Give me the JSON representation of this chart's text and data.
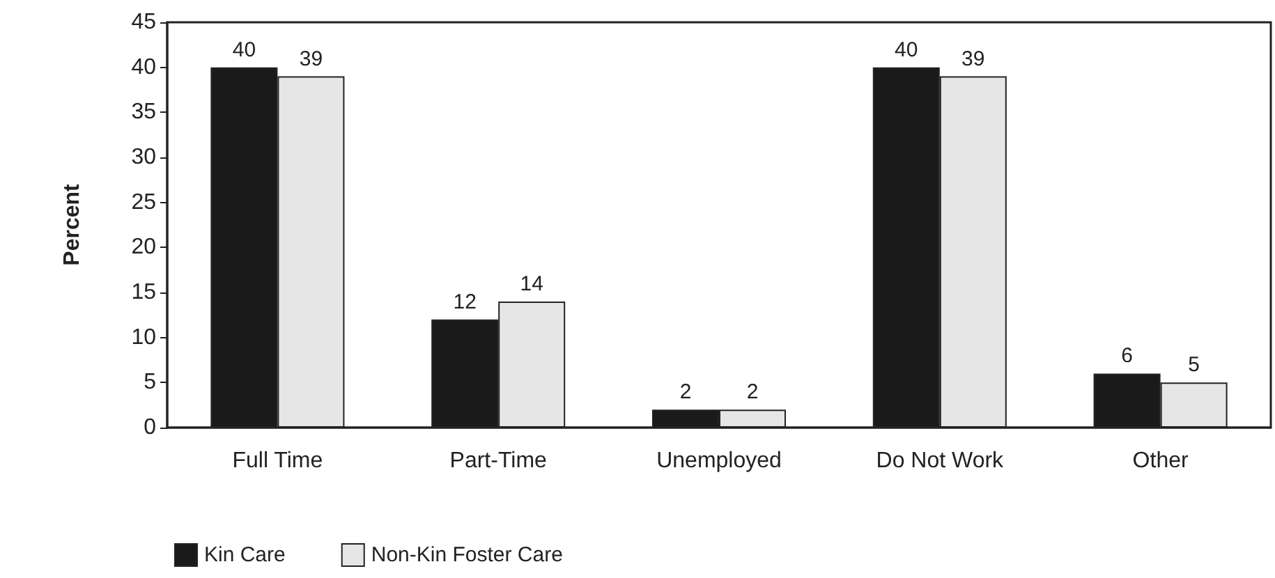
{
  "chart_data": {
    "type": "bar",
    "ylabel": "Percent",
    "categories": [
      "Full Time",
      "Part-Time",
      "Unemployed",
      "Do Not Work",
      "Other"
    ],
    "series": [
      {
        "name": "Kin Care",
        "color": "#1a1a1a",
        "values": [
          40,
          12,
          2,
          40,
          6
        ]
      },
      {
        "name": "Non-Kin Foster Care",
        "color": "#e6e6e6",
        "values": [
          39,
          14,
          2,
          39,
          5
        ]
      }
    ],
    "ylim": [
      0,
      45
    ],
    "yticks": [
      0,
      5,
      10,
      15,
      20,
      25,
      30,
      35,
      40,
      45
    ],
    "grid": false,
    "legend": "bottom left",
    "data_labels": true
  }
}
